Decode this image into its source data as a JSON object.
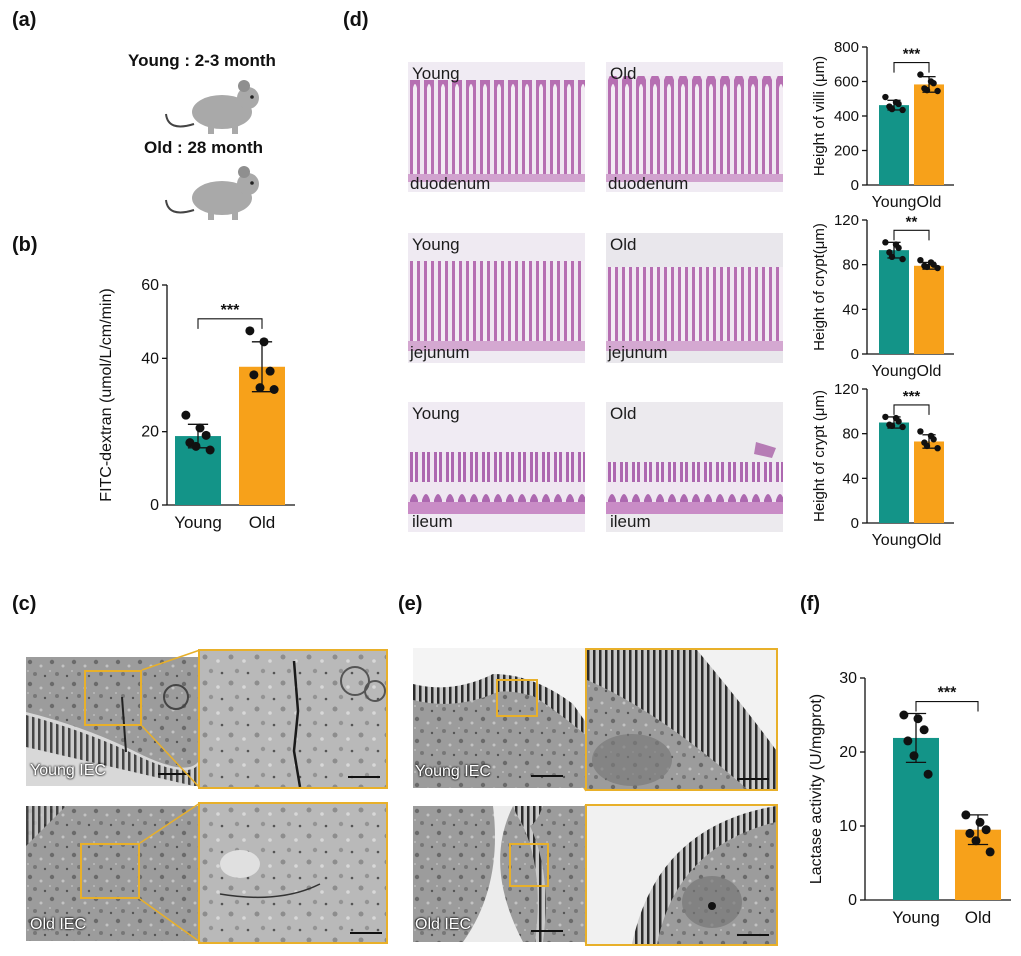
{
  "panels": {
    "a": "(a)",
    "b": "(b)",
    "c": "(c)",
    "d": "(d)",
    "e": "(e)",
    "f": "(f)"
  },
  "panel_a": {
    "young_text": "Young : 2-3 month",
    "old_text": "Old : 28 month"
  },
  "panel_c": {
    "young_label": "Young IEC",
    "old_label": "Old IEC"
  },
  "panel_d": {
    "tile_labels": {
      "young": "Young",
      "old": "Old"
    },
    "segments": [
      "duodenum",
      "jejunum",
      "ileum"
    ]
  },
  "panel_e": {
    "young_label": "Young IEC",
    "old_label": "Old IEC"
  },
  "colors": {
    "young": "#139488",
    "old": "#f7a11a",
    "zoom_box": "#e8b02a"
  },
  "chart_data": [
    {
      "id": "b",
      "type": "bar",
      "categories": [
        "Young",
        "Old"
      ],
      "values": [
        18.8,
        37.7
      ],
      "errors": [
        3.2,
        6.8
      ],
      "points": [
        [
          24.5,
          21,
          19,
          17,
          16,
          15
        ],
        [
          47.5,
          44.5,
          36.5,
          35.5,
          32,
          31.5
        ]
      ],
      "ylabel": "FITC-dextran (umol/L/cm/min)",
      "ylim": [
        0,
        60
      ],
      "yticks": [
        "0",
        "20",
        "40",
        "60"
      ],
      "significance": "***"
    },
    {
      "id": "d1",
      "type": "bar",
      "categories": [
        "Young",
        "Old"
      ],
      "values": [
        463,
        583
      ],
      "errors": [
        28,
        45
      ],
      "points": [
        [
          510,
          480,
          470,
          455,
          440,
          435
        ],
        [
          640,
          600,
          590,
          560,
          550,
          545
        ]
      ],
      "ylabel": "Height of villi (μm)",
      "ylim": [
        0,
        800
      ],
      "yticks": [
        "0",
        "200",
        "400",
        "600",
        "800"
      ],
      "significance": "***"
    },
    {
      "id": "d2",
      "type": "bar",
      "categories": [
        "Young",
        "Old"
      ],
      "values": [
        93,
        79
      ],
      "errors": [
        7,
        3
      ],
      "points": [
        [
          100,
          98,
          95,
          91,
          87,
          85
        ],
        [
          84,
          82,
          80,
          79,
          78,
          77
        ]
      ],
      "ylabel": "Height of crypt(μm)",
      "ylim": [
        0,
        120
      ],
      "yticks": [
        "0",
        "40",
        "80",
        "120"
      ],
      "significance": "**"
    },
    {
      "id": "d3",
      "type": "bar",
      "categories": [
        "Young",
        "Old"
      ],
      "values": [
        90,
        73
      ],
      "errors": [
        5,
        6
      ],
      "points": [
        [
          95,
          94,
          91,
          88,
          87,
          86
        ],
        [
          82,
          78,
          75,
          72,
          69,
          67
        ]
      ],
      "ylabel": "Height of crypt (μm)",
      "ylim": [
        0,
        120
      ],
      "yticks": [
        "0",
        "40",
        "80",
        "120"
      ],
      "significance": "***"
    },
    {
      "id": "f",
      "type": "bar",
      "categories": [
        "Young",
        "Old"
      ],
      "values": [
        21.9,
        9.5
      ],
      "errors": [
        3.3,
        2.0
      ],
      "points": [
        [
          25,
          24.5,
          23,
          21.5,
          19.5,
          17
        ],
        [
          11.5,
          10.5,
          9.5,
          9,
          8,
          6.5
        ]
      ],
      "ylabel": "Lactase activity (U/mgprot)",
      "ylim": [
        0,
        30
      ],
      "yticks": [
        "0",
        "10",
        "20",
        "30"
      ],
      "significance": "***"
    }
  ]
}
